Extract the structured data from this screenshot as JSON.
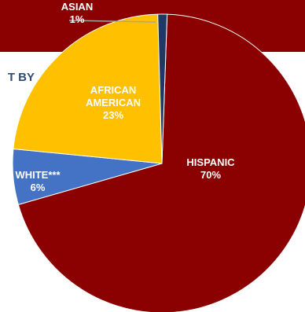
{
  "partial_heading": "T BY",
  "chart_data": {
    "type": "pie",
    "title": "",
    "slices": [
      {
        "label": "HISPANIC",
        "label_lines": [
          "HISPANIC"
        ],
        "value": 70,
        "value_text": "70%",
        "color": "#8b0000",
        "text_color": "#ffffff"
      },
      {
        "label": "WHITE***",
        "label_lines": [
          "WHITE***"
        ],
        "value": 6,
        "value_text": "6%",
        "color": "#4472c4",
        "text_color": "#ffffff"
      },
      {
        "label": "AFRICAN AMERICAN",
        "label_lines": [
          "AFRICAN",
          "AMERICAN"
        ],
        "value": 23,
        "value_text": "23%",
        "color": "#ffc000",
        "text_color": "#ffffff"
      },
      {
        "label": "ASIAN",
        "label_lines": [
          "ASIAN"
        ],
        "value": 1,
        "value_text": "1%",
        "color": "#1f3864",
        "text_color": "#ffffff"
      }
    ],
    "legend": "none"
  }
}
